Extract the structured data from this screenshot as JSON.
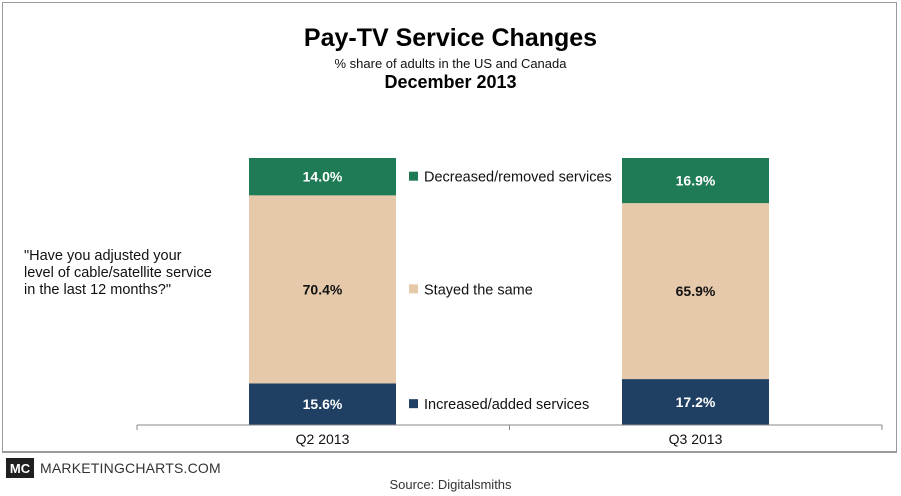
{
  "header": {
    "title": "Pay-TV Service Changes",
    "subtitle": "% share of adults in the US and Canada",
    "date": "December 2013"
  },
  "question": "\"Have you adjusted your\nlevel of cable/satellite service\nin the last 12 months?\"",
  "footer": {
    "logo": "MC",
    "brand": "MARKETINGCHARTS.COM",
    "source": "Source: Digitalsmiths"
  },
  "colors": {
    "decreased": "#1f7a56",
    "same": "#e6c9ab",
    "increased": "#1f3f63"
  },
  "chart_data": {
    "type": "bar",
    "stacked": true,
    "categories": [
      "Q2 2013",
      "Q3 2013"
    ],
    "series": [
      {
        "name": "Increased/added services",
        "values": [
          15.6,
          17.2
        ],
        "labels": [
          "15.6%",
          "17.2%"
        ],
        "color": "#1f3f63",
        "text_color": "#ffffff"
      },
      {
        "name": "Stayed the same",
        "values": [
          70.4,
          65.9
        ],
        "labels": [
          "70.4%",
          "65.9%"
        ],
        "color": "#e6c9ab",
        "text_color": "#111111"
      },
      {
        "name": "Decreased/removed services",
        "values": [
          14.0,
          16.9
        ],
        "labels": [
          "14.0%",
          "16.9%"
        ],
        "color": "#1f7a56",
        "text_color": "#ffffff"
      }
    ],
    "ylim": [
      0,
      100
    ],
    "legend": "center",
    "grid": false
  }
}
